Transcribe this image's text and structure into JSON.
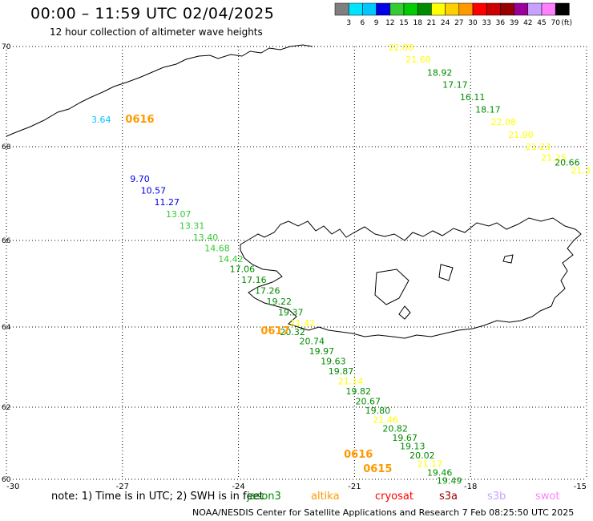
{
  "title": "00:00 – 11:59 UTC 02/04/2025",
  "subtitle": "12 hour collection of altimeter wave heights",
  "note": "note:  1) Time is in UTC; 2) SWH is in feet",
  "credit": "NOAA/NESDIS Center for Satellite Applications and Research     7 Feb 08:25:50 UTC 2025",
  "colorbar": {
    "unit": "(ft)",
    "labels": [
      "3",
      "6",
      "9",
      "12",
      "15",
      "18",
      "21",
      "24",
      "27",
      "30",
      "33",
      "36",
      "39",
      "42",
      "45",
      "70"
    ],
    "colors": [
      "#7f7f7f",
      "#00e5ff",
      "#00c8ff",
      "#0000e6",
      "#33cc33",
      "#00cc00",
      "#008c00",
      "#ffff00",
      "#ffd000",
      "#ff9900",
      "#ff0000",
      "#cc0000",
      "#990000",
      "#990099",
      "#c8a0ff",
      "#ff80ff",
      "#000000"
    ]
  },
  "axes": {
    "x_ticks": [
      "-30",
      "-27",
      "-24",
      "-21",
      "-18",
      "-15"
    ],
    "y_ticks": [
      "70",
      "68",
      "66",
      "64",
      "62",
      "60"
    ]
  },
  "satellites": [
    {
      "name": "jason3",
      "color": "#008c00"
    },
    {
      "name": "altika",
      "color": "#ff9900"
    },
    {
      "name": "cryosat",
      "color": "#ff0000"
    },
    {
      "name": "s3a",
      "color": "#990000"
    },
    {
      "name": "s3b",
      "color": "#c8a0ff"
    },
    {
      "name": "swot",
      "color": "#ff80ff"
    }
  ],
  "chart_data": {
    "type": "scatter",
    "xlim": [
      -30,
      -15
    ],
    "ylim": [
      60,
      70
    ],
    "grid": true,
    "time_labels": [
      {
        "text": "0616",
        "lon": -26.55,
        "lat": 68.48,
        "color": "#ff9900"
      },
      {
        "text": "0617",
        "lon": -23.05,
        "lat": 63.82,
        "color": "#ff9900"
      },
      {
        "text": "0616",
        "lon": -20.9,
        "lat": 60.6,
        "color": "#ff9900"
      },
      {
        "text": "0615",
        "lon": -20.4,
        "lat": 60.2,
        "color": "#ff9900"
      }
    ],
    "points": [
      {
        "v": "22.08",
        "lon": -19.8,
        "lat": 69.92,
        "color": "#ffff00"
      },
      {
        "v": "21.60",
        "lon": -19.35,
        "lat": 69.68,
        "color": "#ffff00"
      },
      {
        "v": "18.92",
        "lon": -18.8,
        "lat": 69.42,
        "color": "#008c00"
      },
      {
        "v": "17.17",
        "lon": -18.4,
        "lat": 69.18,
        "color": "#008c00"
      },
      {
        "v": "16.11",
        "lon": -17.95,
        "lat": 68.93,
        "color": "#008c00"
      },
      {
        "v": "18.17",
        "lon": -17.55,
        "lat": 68.68,
        "color": "#008c00"
      },
      {
        "v": "22.08",
        "lon": -17.15,
        "lat": 68.43,
        "color": "#ffff00"
      },
      {
        "v": "21.90",
        "lon": -16.7,
        "lat": 68.18,
        "color": "#ffff00"
      },
      {
        "v": "21.23",
        "lon": -16.25,
        "lat": 67.93,
        "color": "#ffff00"
      },
      {
        "v": "21.25",
        "lon": -15.85,
        "lat": 67.7,
        "color": "#ffff00"
      },
      {
        "v": "20.66",
        "lon": -15.5,
        "lat": 67.6,
        "color": "#008c00"
      },
      {
        "v": "21.3",
        "lon": -15.15,
        "lat": 67.43,
        "color": "#ffff00"
      },
      {
        "v": "3.64",
        "lon": -27.55,
        "lat": 68.48,
        "color": "#00c8ff"
      },
      {
        "v": "9.70",
        "lon": -26.55,
        "lat": 67.25,
        "color": "#0000e6"
      },
      {
        "v": "10.57",
        "lon": -26.2,
        "lat": 67.0,
        "color": "#0000e6"
      },
      {
        "v": "11.27",
        "lon": -25.85,
        "lat": 66.75,
        "color": "#0000e6"
      },
      {
        "v": "13.07",
        "lon": -25.55,
        "lat": 66.5,
        "color": "#33cc33"
      },
      {
        "v": "13.31",
        "lon": -25.2,
        "lat": 66.25,
        "color": "#33cc33"
      },
      {
        "v": "13.40",
        "lon": -24.85,
        "lat": 66.0,
        "color": "#33cc33"
      },
      {
        "v": "14.68",
        "lon": -24.55,
        "lat": 65.75,
        "color": "#33cc33"
      },
      {
        "v": "14.42",
        "lon": -24.2,
        "lat": 65.5,
        "color": "#33cc33"
      },
      {
        "v": "17.06",
        "lon": -23.9,
        "lat": 65.27,
        "color": "#008c00"
      },
      {
        "v": "17.16",
        "lon": -23.6,
        "lat": 65.02,
        "color": "#008c00"
      },
      {
        "v": "17.26",
        "lon": -23.25,
        "lat": 64.77,
        "color": "#008c00"
      },
      {
        "v": "19.22",
        "lon": -22.95,
        "lat": 64.52,
        "color": "#008c00"
      },
      {
        "v": "19.37",
        "lon": -22.65,
        "lat": 64.27,
        "color": "#008c00"
      },
      {
        "v": "21.42",
        "lon": -22.35,
        "lat": 64.02,
        "color": "#ffff00"
      },
      {
        "v": "20.32",
        "lon": -22.6,
        "lat": 63.8,
        "color": "#008c00"
      },
      {
        "v": "20.74",
        "lon": -22.1,
        "lat": 63.57,
        "color": "#008c00"
      },
      {
        "v": "19.97",
        "lon": -21.85,
        "lat": 63.32,
        "color": "#008c00"
      },
      {
        "v": "19.63",
        "lon": -21.55,
        "lat": 63.07,
        "color": "#008c00"
      },
      {
        "v": "19.87",
        "lon": -21.35,
        "lat": 62.82,
        "color": "#008c00"
      },
      {
        "v": "21.14",
        "lon": -21.1,
        "lat": 62.57,
        "color": "#ffff00"
      },
      {
        "v": "19.82",
        "lon": -20.9,
        "lat": 62.32,
        "color": "#008c00"
      },
      {
        "v": "20.67",
        "lon": -20.65,
        "lat": 62.07,
        "color": "#008c00"
      },
      {
        "v": "19.80",
        "lon": -20.4,
        "lat": 61.82,
        "color": "#008c00"
      },
      {
        "v": "21.46",
        "lon": -20.2,
        "lat": 61.57,
        "color": "#ffff00"
      },
      {
        "v": "20.82",
        "lon": -19.95,
        "lat": 61.32,
        "color": "#008c00"
      },
      {
        "v": "19.67",
        "lon": -19.7,
        "lat": 61.07,
        "color": "#008c00"
      },
      {
        "v": "19.13",
        "lon": -19.5,
        "lat": 60.83,
        "color": "#008c00"
      },
      {
        "v": "20.02",
        "lon": -19.25,
        "lat": 60.58,
        "color": "#008c00"
      },
      {
        "v": "21.17",
        "lon": -19.05,
        "lat": 60.34,
        "color": "#ffff00"
      },
      {
        "v": "19.46",
        "lon": -18.8,
        "lat": 60.1,
        "color": "#008c00"
      },
      {
        "v": "19.49",
        "lon": -18.55,
        "lat": 59.88,
        "color": "#008c00"
      }
    ]
  }
}
